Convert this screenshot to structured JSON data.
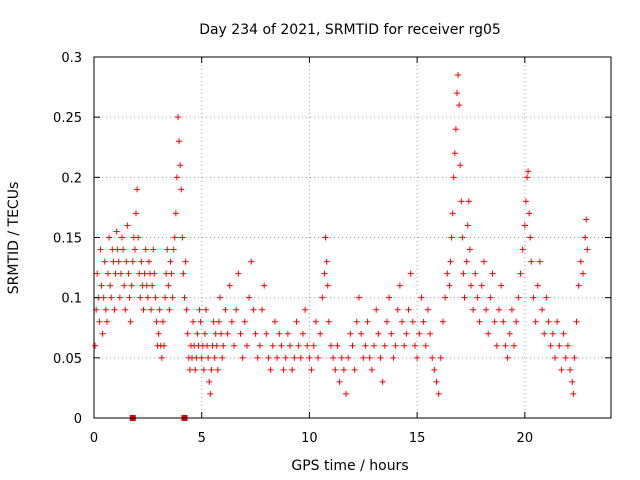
{
  "chart_data": {
    "type": "scatter",
    "title": "Day 234 of 2021, SRMTID for receiver rg05",
    "xlabel": "GPS time / hours",
    "ylabel": "SRMTID / TECUs",
    "xlim": [
      0,
      24
    ],
    "ylim": [
      0,
      0.3
    ],
    "xticks": [
      0,
      5,
      10,
      15,
      20
    ],
    "yticks": [
      0,
      0.05,
      0.1,
      0.15,
      0.2,
      0.25,
      0.3
    ],
    "grid": true,
    "marker": "+",
    "series_color": "#ff0000",
    "gap_marker_color": "#dd0000",
    "gap_markers_x": [
      1.8,
      4.2
    ],
    "series": [
      {
        "name": "SRMTID",
        "points": [
          [
            0.05,
            0.06
          ],
          [
            0.1,
            0.09
          ],
          [
            0.15,
            0.12
          ],
          [
            0.2,
            0.1
          ],
          [
            0.25,
            0.08
          ],
          [
            0.3,
            0.14
          ],
          [
            0.35,
            0.11
          ],
          [
            0.4,
            0.07
          ],
          [
            0.45,
            0.1
          ],
          [
            0.5,
            0.13
          ],
          [
            0.55,
            0.09
          ],
          [
            0.6,
            0.08
          ],
          [
            0.65,
            0.12
          ],
          [
            0.7,
            0.15
          ],
          [
            0.75,
            0.11
          ],
          [
            0.8,
            0.1
          ],
          [
            0.85,
            0.14
          ],
          [
            0.9,
            0.13
          ],
          [
            0.95,
            0.09
          ],
          [
            1.0,
            0.12
          ],
          [
            1.05,
            0.155
          ],
          [
            1.1,
            0.14
          ],
          [
            1.15,
            0.13
          ],
          [
            1.2,
            0.1
          ],
          [
            1.25,
            0.12
          ],
          [
            1.3,
            0.15
          ],
          [
            1.35,
            0.14
          ],
          [
            1.4,
            0.11
          ],
          [
            1.45,
            0.09
          ],
          [
            1.5,
            0.13
          ],
          [
            1.55,
            0.16
          ],
          [
            1.6,
            0.12
          ],
          [
            1.65,
            0.1
          ],
          [
            1.7,
            0.08
          ],
          [
            1.75,
            0.11
          ],
          [
            1.8,
            0.13
          ],
          [
            1.85,
            0.15
          ],
          [
            1.9,
            0.14
          ],
          [
            1.95,
            0.17
          ],
          [
            2.0,
            0.19
          ],
          [
            2.05,
            0.15
          ],
          [
            2.1,
            0.12
          ],
          [
            2.15,
            0.1
          ],
          [
            2.2,
            0.13
          ],
          [
            2.25,
            0.11
          ],
          [
            2.3,
            0.09
          ],
          [
            2.35,
            0.12
          ],
          [
            2.4,
            0.14
          ],
          [
            2.45,
            0.11
          ],
          [
            2.5,
            0.1
          ],
          [
            2.55,
            0.13
          ],
          [
            2.6,
            0.12
          ],
          [
            2.65,
            0.09
          ],
          [
            2.7,
            0.11
          ],
          [
            2.75,
            0.14
          ],
          [
            2.8,
            0.12
          ],
          [
            2.85,
            0.1
          ],
          [
            2.9,
            0.08
          ],
          [
            2.95,
            0.06
          ],
          [
            3.0,
            0.07
          ],
          [
            3.05,
            0.09
          ],
          [
            3.1,
            0.06
          ],
          [
            3.15,
            0.05
          ],
          [
            3.2,
            0.08
          ],
          [
            3.25,
            0.06
          ],
          [
            3.3,
            0.1
          ],
          [
            3.35,
            0.12
          ],
          [
            3.4,
            0.14
          ],
          [
            3.45,
            0.11
          ],
          [
            3.5,
            0.09
          ],
          [
            3.55,
            0.13
          ],
          [
            3.6,
            0.12
          ],
          [
            3.65,
            0.1
          ],
          [
            3.7,
            0.14
          ],
          [
            3.75,
            0.15
          ],
          [
            3.8,
            0.17
          ],
          [
            3.85,
            0.2
          ],
          [
            3.9,
            0.25
          ],
          [
            3.95,
            0.23
          ],
          [
            4.0,
            0.21
          ],
          [
            4.05,
            0.19
          ],
          [
            4.1,
            0.15
          ],
          [
            4.15,
            0.12
          ],
          [
            4.2,
            0.1
          ],
          [
            4.25,
            0.13
          ],
          [
            4.3,
            0.09
          ],
          [
            4.35,
            0.07
          ],
          [
            4.4,
            0.05
          ],
          [
            4.45,
            0.04
          ],
          [
            4.5,
            0.06
          ],
          [
            4.55,
            0.05
          ],
          [
            4.6,
            0.08
          ],
          [
            4.65,
            0.06
          ],
          [
            4.7,
            0.04
          ],
          [
            4.75,
            0.05
          ],
          [
            4.8,
            0.07
          ],
          [
            4.85,
            0.06
          ],
          [
            4.9,
            0.09
          ],
          [
            4.95,
            0.08
          ],
          [
            5.0,
            0.05
          ],
          [
            5.05,
            0.06
          ],
          [
            5.1,
            0.04
          ],
          [
            5.15,
            0.07
          ],
          [
            5.2,
            0.09
          ],
          [
            5.25,
            0.06
          ],
          [
            5.3,
            0.05
          ],
          [
            5.35,
            0.03
          ],
          [
            5.4,
            0.02
          ],
          [
            5.45,
            0.04
          ],
          [
            5.5,
            0.06
          ],
          [
            5.55,
            0.08
          ],
          [
            5.6,
            0.05
          ],
          [
            5.65,
            0.07
          ],
          [
            5.7,
            0.06
          ],
          [
            5.75,
            0.04
          ],
          [
            5.8,
            0.08
          ],
          [
            5.85,
            0.1
          ],
          [
            5.9,
            0.07
          ],
          [
            5.95,
            0.05
          ],
          [
            6.0,
            0.06
          ],
          [
            6.1,
            0.09
          ],
          [
            6.2,
            0.07
          ],
          [
            6.3,
            0.11
          ],
          [
            6.4,
            0.08
          ],
          [
            6.5,
            0.06
          ],
          [
            6.6,
            0.09
          ],
          [
            6.7,
            0.12
          ],
          [
            6.8,
            0.07
          ],
          [
            6.9,
            0.05
          ],
          [
            7.0,
            0.08
          ],
          [
            7.1,
            0.06
          ],
          [
            7.2,
            0.1
          ],
          [
            7.3,
            0.13
          ],
          [
            7.4,
            0.09
          ],
          [
            7.5,
            0.07
          ],
          [
            7.6,
            0.05
          ],
          [
            7.7,
            0.06
          ],
          [
            7.8,
            0.09
          ],
          [
            7.9,
            0.11
          ],
          [
            8.0,
            0.07
          ],
          [
            8.1,
            0.05
          ],
          [
            8.2,
            0.04
          ],
          [
            8.3,
            0.06
          ],
          [
            8.4,
            0.08
          ],
          [
            8.5,
            0.05
          ],
          [
            8.6,
            0.07
          ],
          [
            8.7,
            0.06
          ],
          [
            8.8,
            0.04
          ],
          [
            8.9,
            0.05
          ],
          [
            9.0,
            0.07
          ],
          [
            9.1,
            0.06
          ],
          [
            9.2,
            0.04
          ],
          [
            9.3,
            0.05
          ],
          [
            9.4,
            0.08
          ],
          [
            9.5,
            0.06
          ],
          [
            9.6,
            0.05
          ],
          [
            9.7,
            0.07
          ],
          [
            9.8,
            0.09
          ],
          [
            9.9,
            0.06
          ],
          [
            10.0,
            0.05
          ],
          [
            10.1,
            0.04
          ],
          [
            10.2,
            0.06
          ],
          [
            10.3,
            0.08
          ],
          [
            10.4,
            0.05
          ],
          [
            10.5,
            0.07
          ],
          [
            10.6,
            0.1
          ],
          [
            10.7,
            0.12
          ],
          [
            10.75,
            0.15
          ],
          [
            10.8,
            0.13
          ],
          [
            10.85,
            0.11
          ],
          [
            10.9,
            0.08
          ],
          [
            11.0,
            0.06
          ],
          [
            11.1,
            0.05
          ],
          [
            11.2,
            0.04
          ],
          [
            11.3,
            0.06
          ],
          [
            11.4,
            0.03
          ],
          [
            11.5,
            0.05
          ],
          [
            11.6,
            0.04
          ],
          [
            11.7,
            0.02
          ],
          [
            11.8,
            0.05
          ],
          [
            11.9,
            0.07
          ],
          [
            12.0,
            0.06
          ],
          [
            12.1,
            0.04
          ],
          [
            12.2,
            0.08
          ],
          [
            12.3,
            0.1
          ],
          [
            12.4,
            0.07
          ],
          [
            12.5,
            0.05
          ],
          [
            12.6,
            0.06
          ],
          [
            12.7,
            0.08
          ],
          [
            12.8,
            0.05
          ],
          [
            12.9,
            0.04
          ],
          [
            13.0,
            0.06
          ],
          [
            13.1,
            0.09
          ],
          [
            13.2,
            0.07
          ],
          [
            13.3,
            0.05
          ],
          [
            13.4,
            0.03
          ],
          [
            13.5,
            0.06
          ],
          [
            13.6,
            0.08
          ],
          [
            13.7,
            0.1
          ],
          [
            13.8,
            0.07
          ],
          [
            13.9,
            0.05
          ],
          [
            14.0,
            0.06
          ],
          [
            14.1,
            0.09
          ],
          [
            14.2,
            0.11
          ],
          [
            14.3,
            0.08
          ],
          [
            14.4,
            0.06
          ],
          [
            14.5,
            0.07
          ],
          [
            14.6,
            0.09
          ],
          [
            14.7,
            0.12
          ],
          [
            14.8,
            0.08
          ],
          [
            14.9,
            0.06
          ],
          [
            15.0,
            0.05
          ],
          [
            15.1,
            0.07
          ],
          [
            15.2,
            0.1
          ],
          [
            15.3,
            0.08
          ],
          [
            15.4,
            0.06
          ],
          [
            15.5,
            0.09
          ],
          [
            15.6,
            0.07
          ],
          [
            15.7,
            0.05
          ],
          [
            15.8,
            0.04
          ],
          [
            15.9,
            0.03
          ],
          [
            16.0,
            0.02
          ],
          [
            16.1,
            0.05
          ],
          [
            16.2,
            0.08
          ],
          [
            16.3,
            0.1
          ],
          [
            16.4,
            0.12
          ],
          [
            16.5,
            0.11
          ],
          [
            16.55,
            0.13
          ],
          [
            16.6,
            0.15
          ],
          [
            16.65,
            0.17
          ],
          [
            16.7,
            0.2
          ],
          [
            16.75,
            0.22
          ],
          [
            16.8,
            0.24
          ],
          [
            16.85,
            0.27
          ],
          [
            16.9,
            0.285
          ],
          [
            16.95,
            0.26
          ],
          [
            17.0,
            0.21
          ],
          [
            17.05,
            0.18
          ],
          [
            17.1,
            0.15
          ],
          [
            17.15,
            0.12
          ],
          [
            17.2,
            0.1
          ],
          [
            17.3,
            0.13
          ],
          [
            17.35,
            0.16
          ],
          [
            17.4,
            0.18
          ],
          [
            17.45,
            0.14
          ],
          [
            17.5,
            0.11
          ],
          [
            17.6,
            0.09
          ],
          [
            17.7,
            0.12
          ],
          [
            17.8,
            0.1
          ],
          [
            17.9,
            0.08
          ],
          [
            18.0,
            0.11
          ],
          [
            18.1,
            0.13
          ],
          [
            18.2,
            0.09
          ],
          [
            18.3,
            0.07
          ],
          [
            18.4,
            0.1
          ],
          [
            18.5,
            0.12
          ],
          [
            18.6,
            0.08
          ],
          [
            18.7,
            0.06
          ],
          [
            18.8,
            0.09
          ],
          [
            18.9,
            0.11
          ],
          [
            19.0,
            0.08
          ],
          [
            19.1,
            0.06
          ],
          [
            19.2,
            0.05
          ],
          [
            19.3,
            0.07
          ],
          [
            19.4,
            0.09
          ],
          [
            19.5,
            0.06
          ],
          [
            19.6,
            0.08
          ],
          [
            19.7,
            0.1
          ],
          [
            19.8,
            0.12
          ],
          [
            19.9,
            0.14
          ],
          [
            20.0,
            0.16
          ],
          [
            20.05,
            0.18
          ],
          [
            20.1,
            0.2
          ],
          [
            20.15,
            0.205
          ],
          [
            20.2,
            0.17
          ],
          [
            20.25,
            0.15
          ],
          [
            20.3,
            0.13
          ],
          [
            20.4,
            0.1
          ],
          [
            20.5,
            0.08
          ],
          [
            20.6,
            0.11
          ],
          [
            20.7,
            0.13
          ],
          [
            20.8,
            0.09
          ],
          [
            20.9,
            0.07
          ],
          [
            21.0,
            0.1
          ],
          [
            21.1,
            0.08
          ],
          [
            21.2,
            0.06
          ],
          [
            21.3,
            0.07
          ],
          [
            21.4,
            0.05
          ],
          [
            21.5,
            0.08
          ],
          [
            21.6,
            0.06
          ],
          [
            21.7,
            0.04
          ],
          [
            21.8,
            0.07
          ],
          [
            21.9,
            0.05
          ],
          [
            22.0,
            0.06
          ],
          [
            22.1,
            0.04
          ],
          [
            22.2,
            0.03
          ],
          [
            22.25,
            0.02
          ],
          [
            22.3,
            0.05
          ],
          [
            22.4,
            0.08
          ],
          [
            22.5,
            0.11
          ],
          [
            22.6,
            0.13
          ],
          [
            22.7,
            0.12
          ],
          [
            22.8,
            0.15
          ],
          [
            22.85,
            0.165
          ],
          [
            22.9,
            0.14
          ]
        ]
      }
    ]
  }
}
